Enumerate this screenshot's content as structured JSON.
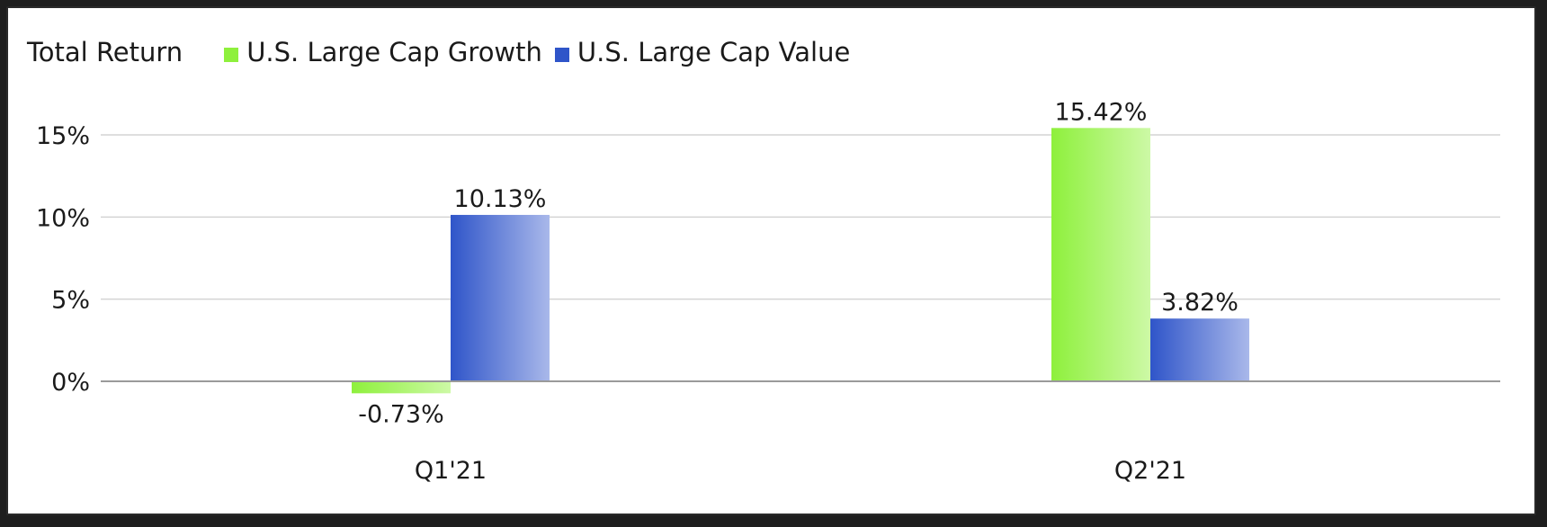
{
  "chart_data": {
    "type": "bar",
    "title": "Total Return",
    "categories": [
      "Q1'21",
      "Q2'21"
    ],
    "series": [
      {
        "name": "U.S. Large Cap Growth",
        "values": [
          -0.73,
          15.42
        ],
        "labels": [
          "-0.73%",
          "15.42%"
        ],
        "color": "#8ef03c",
        "color_light": "#cdf9a6"
      },
      {
        "name": "U.S. Large Cap Value",
        "values": [
          10.13,
          3.82
        ],
        "labels": [
          "10.13%",
          "3.82%"
        ],
        "color": "#2f55c9",
        "color_light": "#a9b8ea"
      }
    ],
    "yticks": [
      0,
      5,
      10,
      15
    ],
    "ytick_labels": [
      "0%",
      "5%",
      "10%",
      "15%"
    ],
    "ylim": [
      -2.5,
      17
    ],
    "grid": true,
    "legend_position": "top-left"
  }
}
